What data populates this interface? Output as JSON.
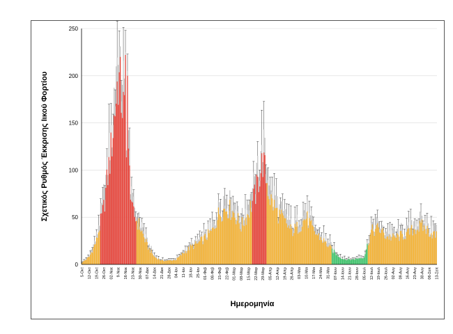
{
  "chart_data": {
    "type": "bar",
    "title": "",
    "xlabel": "Ημερομηνία",
    "ylabel": "Σχετικός Ρυθμός Έκκρισης Ιικού Φορτίου",
    "ylim": [
      0,
      250
    ],
    "yticks": [
      0,
      50,
      100,
      150,
      200,
      250
    ],
    "grid": true,
    "colors": {
      "red": "#e8443a",
      "orange": "#f5b335",
      "green": "#3cc46a",
      "range": "#c4c4c4",
      "error": "#3a3a3a",
      "grid": "#d9d9d9"
    },
    "tick_labels": [
      "5-Οκτ",
      "12-Οκτ",
      "19-Οκτ",
      "26-Οκτ",
      "02-Νοε",
      "9-Νοε",
      "16-Νοε",
      "23-Νοε",
      "30-Νοε",
      "07-Δεκ",
      "14-Δεκ",
      "21-Δεκ",
      "28-Δεκ",
      "04-Ιαν",
      "11-Ιαν",
      "18-Ιαν",
      "25-Ιαν",
      "01-Φεβ",
      "08-Φεβ",
      "15-Φεβ",
      "22-Φεβ",
      "01-Μαρ",
      "08-Μαρ",
      "15-Μαρ",
      "22-Μαρ",
      "29-Μαρ",
      "05-Απρ",
      "12-Απρ",
      "19-Απρ",
      "26-Απρ",
      "03-Μαι",
      "10-Μαι",
      "17-Μαι",
      "24-Μαι",
      "31-Μαι",
      "07-Ιουν",
      "14-Ιουν",
      "21-Ιουν",
      "28-Ιουν",
      "05-Ιουλ",
      "12-Ιουλ",
      "19-Ιουλ",
      "26-Ιουλ",
      "02-Αυγ",
      "09-Αυγ",
      "16-Αυγ",
      "23-Αυγ",
      "30-Αυγ",
      "06-Σεπ",
      "13-Σεπ"
    ],
    "x": [
      "5-Οκτ",
      "",
      "",
      "",
      "",
      "",
      "",
      "12-Οκτ",
      "",
      "",
      "",
      "",
      "",
      "",
      "19-Οκτ",
      "",
      "",
      "",
      "",
      "",
      "",
      "26-Οκτ",
      "",
      "",
      "",
      "",
      "",
      "",
      "02-Νοε",
      "",
      "",
      "",
      "",
      "",
      "",
      "9-Νοε",
      "",
      "",
      "",
      "",
      "",
      "",
      "16-Νοε",
      "",
      "",
      "",
      "",
      "",
      "",
      "23-Νοε",
      "",
      "",
      "",
      "",
      "",
      "",
      "30-Νοε",
      "",
      "",
      "",
      "",
      "",
      "",
      "07-Δεκ",
      "",
      "",
      "",
      "",
      "",
      "",
      "14-Δεκ",
      "",
      "",
      "",
      "",
      "",
      "",
      "21-Δεκ",
      "",
      "",
      "",
      "",
      "",
      "",
      "28-Δεκ",
      "",
      "",
      "",
      "",
      "",
      "",
      "04-Ιαν",
      "",
      "",
      "",
      "",
      "",
      "",
      "11-Ιαν",
      "",
      "",
      "",
      "",
      "",
      "",
      "18-Ιαν",
      "",
      "",
      "",
      "",
      "",
      "",
      "25-Ιαν",
      "",
      "",
      "",
      "",
      "",
      "",
      "01-Φεβ",
      "",
      "",
      "",
      "",
      "",
      "",
      "08-Φεβ",
      "",
      "",
      "",
      "",
      "",
      "",
      "15-Φεβ",
      "",
      "",
      "",
      "",
      "",
      "",
      "22-Φεβ",
      "",
      "",
      "",
      "",
      "",
      "",
      "01-Μαρ",
      "",
      "",
      "",
      "",
      "",
      "",
      "08-Μαρ",
      "",
      "",
      "",
      "",
      "",
      "",
      "15-Μαρ",
      "",
      "",
      "",
      "",
      "",
      "",
      "22-Μαρ",
      "",
      "",
      "",
      "",
      "",
      "",
      "29-Μαρ",
      "",
      "",
      "",
      "",
      "",
      "",
      "05-Απρ",
      "",
      "",
      "",
      "",
      "",
      "",
      "12-Απρ",
      "",
      "",
      "",
      "",
      "",
      "",
      "19-Απρ",
      "",
      "",
      "",
      "",
      "",
      "",
      "26-Απρ",
      "",
      "",
      "",
      "",
      "",
      "",
      "03-Μαι",
      "",
      "",
      "",
      "",
      "",
      "",
      "10-Μαι",
      "",
      "",
      "",
      "",
      "",
      "",
      "17-Μαι",
      "",
      "",
      "",
      "",
      "",
      "",
      "24-Μαι",
      "",
      "",
      "",
      "",
      "",
      "",
      "31-Μαι",
      "",
      "",
      "",
      "",
      "",
      "",
      "07-Ιουν",
      "",
      "",
      "",
      "",
      "",
      "",
      "14-Ιουν",
      "",
      "",
      "",
      "",
      "",
      "",
      "21-Ιουν",
      "",
      "",
      "",
      "",
      "",
      "",
      "28-Ιουν",
      "",
      "",
      "",
      "",
      "",
      "",
      "05-Ιουλ",
      "",
      "",
      "",
      "",
      "",
      "",
      "12-Ιουλ",
      "",
      "",
      "",
      "",
      "",
      "",
      "19-Ιουλ",
      "",
      "",
      "",
      "",
      "",
      "",
      "26-Ιουλ",
      "",
      "",
      "",
      "",
      "",
      "",
      "02-Αυγ",
      "",
      "",
      "",
      "",
      "",
      "",
      "09-Αυγ",
      "",
      "",
      "",
      "",
      "",
      "",
      "16-Αυγ",
      "",
      "",
      "",
      "",
      "",
      "",
      "23-Αυγ",
      "",
      "",
      "",
      "",
      "",
      "",
      "30-Αυγ",
      "",
      "",
      "",
      "",
      "",
      "",
      "06-Σεπ",
      "",
      "",
      "",
      "",
      "",
      "",
      "13-Σεπ"
    ],
    "weekly_anchor_values": [
      2,
      8,
      25,
      60,
      120,
      200,
      150,
      55,
      40,
      20,
      8,
      4,
      4,
      5,
      12,
      18,
      22,
      28,
      35,
      55,
      60,
      55,
      40,
      55,
      75,
      110,
      70,
      55,
      45,
      35,
      40,
      50,
      35,
      28,
      20,
      12,
      6,
      5,
      6,
      8,
      35,
      38,
      30,
      28,
      30,
      32,
      38,
      40,
      35,
      30
    ],
    "weekly_colors": [
      "orange",
      "orange",
      "orange",
      "red",
      "red",
      "red",
      "red",
      "red",
      "orange",
      "orange",
      "orange",
      "orange",
      "orange",
      "orange",
      "orange",
      "orange",
      "orange",
      "orange",
      "orange",
      "orange",
      "orange",
      "orange",
      "orange",
      "orange",
      "red",
      "red",
      "orange",
      "orange",
      "orange",
      "orange",
      "orange",
      "orange",
      "orange",
      "orange",
      "orange",
      "green",
      "green",
      "green",
      "green",
      "green",
      "orange",
      "orange",
      "orange",
      "orange",
      "orange",
      "orange",
      "orange",
      "orange",
      "orange",
      "orange"
    ]
  }
}
